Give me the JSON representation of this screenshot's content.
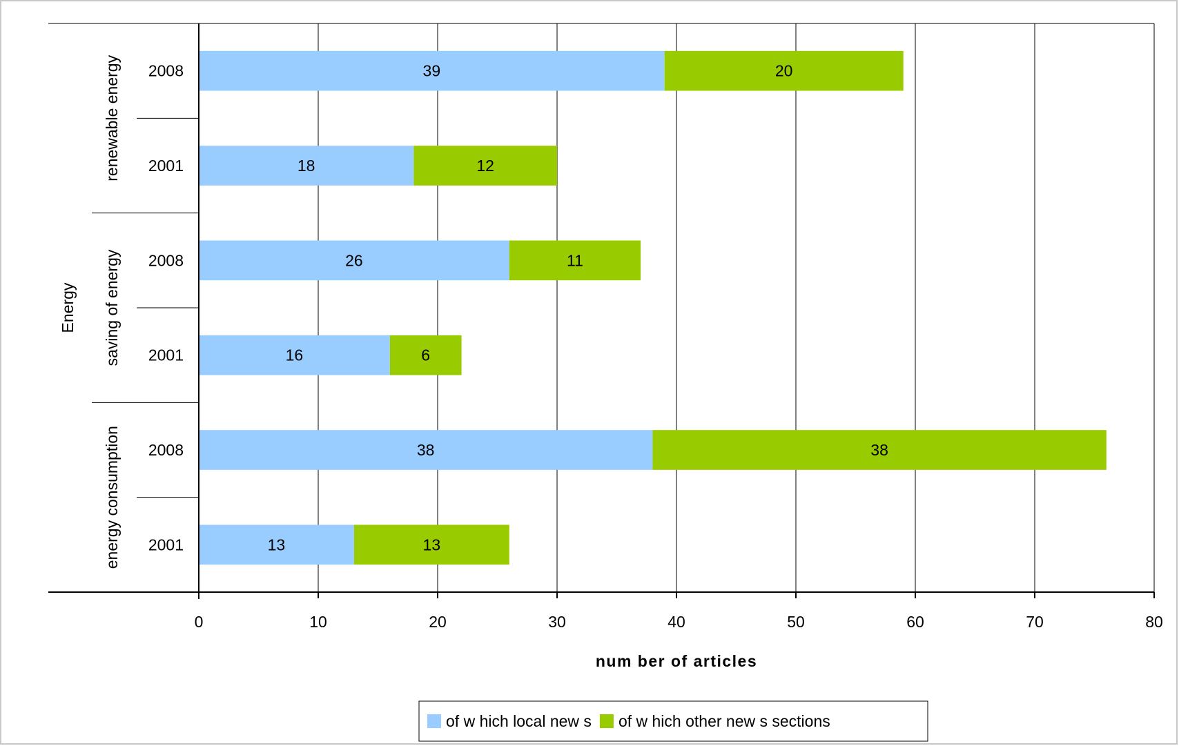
{
  "chart_data": {
    "type": "bar",
    "orientation": "horizontal",
    "stacked": true,
    "group_label": "Energy",
    "groups": [
      {
        "name": "renewable energy",
        "categories": [
          "2008",
          "2001"
        ]
      },
      {
        "name": "saving of energy",
        "categories": [
          "2008",
          "2001"
        ]
      },
      {
        "name": "energy consumption",
        "categories": [
          "2008",
          "2001"
        ]
      }
    ],
    "series": [
      {
        "name": "of w hich local new s",
        "color": "#99ccff",
        "values": [
          39,
          18,
          26,
          16,
          38,
          13
        ]
      },
      {
        "name": "of w hich other new s sections",
        "color": "#99cc00",
        "values": [
          20,
          12,
          11,
          6,
          38,
          13
        ]
      }
    ],
    "xlabel": "num ber of articles",
    "xlim": [
      0,
      80
    ],
    "xticks": [
      0,
      10,
      20,
      30,
      40,
      50,
      60,
      70,
      80
    ],
    "grid": true,
    "legend_position": "bottom"
  }
}
